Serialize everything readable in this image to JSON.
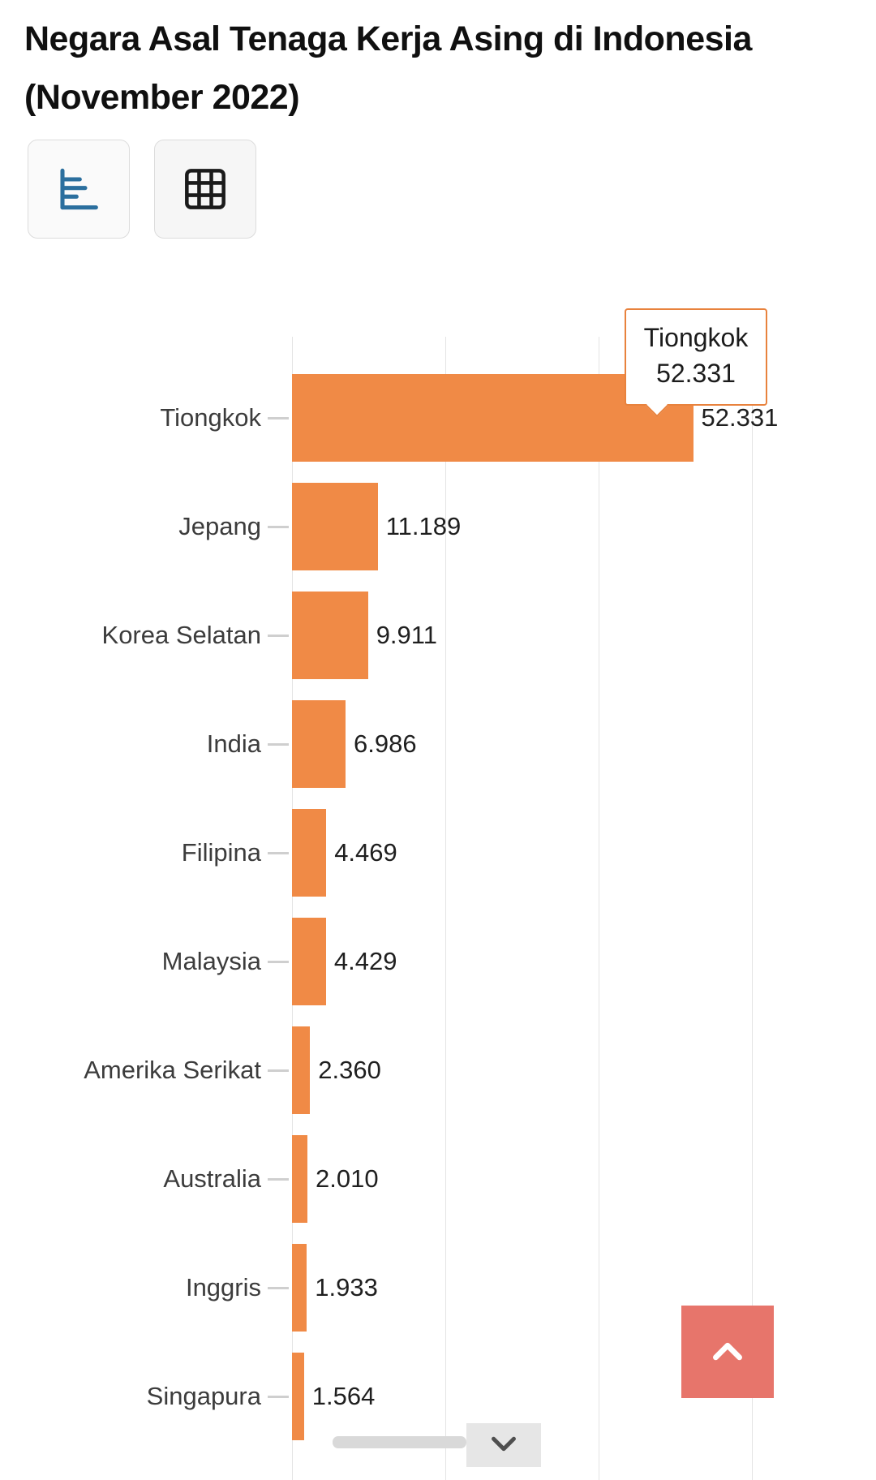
{
  "header": {
    "title_line1": "Negara Asal Tenaga Kerja Asing di Indonesia",
    "title_line2": "(November 2022)"
  },
  "toolbar": {
    "buttons": [
      {
        "name": "chart-view",
        "icon": "bar-chart-icon",
        "active": true
      },
      {
        "name": "table-view",
        "icon": "table-icon",
        "active": false
      }
    ]
  },
  "chart_data": {
    "type": "bar",
    "orientation": "horizontal",
    "title": "Negara Asal Tenaga Kerja Asing di Indonesia (November 2022)",
    "categories": [
      "Tiongkok",
      "Jepang",
      "Korea Selatan",
      "India",
      "Filipina",
      "Malaysia",
      "Amerika Serikat",
      "Australia",
      "Inggris",
      "Singapura"
    ],
    "values": [
      52331,
      11189,
      9911,
      6986,
      4469,
      4429,
      2360,
      2010,
      1933,
      1564
    ],
    "value_labels": [
      "52.331",
      "11.189",
      "9.911",
      "6.986",
      "4.469",
      "4.429",
      "2.360",
      "2.010",
      "1.933",
      "1.564"
    ],
    "xlim": [
      0,
      60000
    ],
    "gridline_step": 20000,
    "grid": "vertical",
    "legend": false,
    "bar_color": "#f08a46",
    "gridline_color": "#e4e4e4",
    "label_color": "#3c3c3c",
    "value_color": "#1f1f1f"
  },
  "tooltip": {
    "category": "Tiongkok",
    "value": "52.331",
    "border_color": "#e8823d"
  },
  "floating": {
    "scroll_top_button_color": "#e7756b",
    "scroll_top_icon": "chevron-up-icon",
    "scroll_down_icon": "chevron-down-icon"
  }
}
